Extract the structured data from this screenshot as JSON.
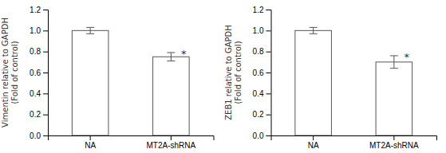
{
  "chart_data": [
    {
      "type": "bar",
      "ylabel": "Vimentin relative to GAPDH\n(Fold of control)",
      "categories": [
        "NA",
        "MT2A-shRNA"
      ],
      "values": [
        1.0,
        0.75
      ],
      "errors": [
        0.03,
        0.04
      ],
      "color": "white",
      "ylim": [
        0,
        1.2
      ],
      "yticks": [
        {
          "value": 0.0,
          "label": "0.0"
        },
        0.2,
        0.4,
        0.6,
        0.8,
        {
          "value": 1.0,
          "label": "1.0"
        },
        1.2
      ],
      "annotations": [
        {
          "text": "*",
          "x": "MT2A-shRNA"
        }
      ]
    },
    {
      "type": "bar",
      "ylabel": "ZEB1 relative to GAPDH\n(Fold of control)",
      "categories": [
        "NA",
        "MT2A-shRNA"
      ],
      "values": [
        1.0,
        0.7
      ],
      "errors": [
        0.03,
        0.06
      ],
      "color": "white",
      "ylim": [
        0,
        1.2
      ],
      "yticks": [
        {
          "value": 0.0,
          "label": "0.0"
        },
        0.2,
        0.4,
        0.6,
        0.8,
        {
          "value": 1.0,
          "label": "1.0"
        },
        1.2
      ],
      "annotations": [
        {
          "text": "*",
          "x": "MT2A-shRNA"
        }
      ]
    }
  ]
}
